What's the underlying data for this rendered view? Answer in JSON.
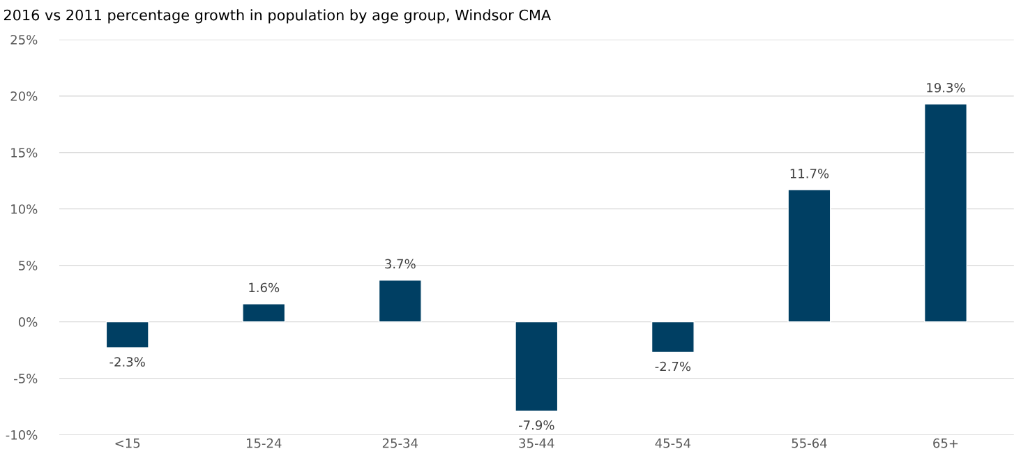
{
  "chart_data": {
    "type": "bar",
    "title": "2016 vs 2011 percentage growth in population by age group, Windsor CMA",
    "categories": [
      "<15",
      "15-24",
      "25-34",
      "35-44",
      "45-54",
      "55-64",
      "65+"
    ],
    "values": [
      -2.3,
      1.6,
      3.7,
      -7.9,
      -2.7,
      11.7,
      19.3
    ],
    "value_labels": [
      "-2.3%",
      "1.6%",
      "3.7%",
      "-7.9%",
      "-2.7%",
      "11.7%",
      "19.3%"
    ],
    "color": "#003f63",
    "ylim": [
      -10,
      25
    ],
    "yticks": [
      {
        "value": -10,
        "label": "-10%"
      },
      {
        "value": -5,
        "label": "-5%"
      },
      {
        "value": 0,
        "label": "0%"
      },
      {
        "value": 5,
        "label": "5%"
      },
      {
        "value": 10,
        "label": "10%"
      },
      {
        "value": 15,
        "label": "15%"
      },
      {
        "value": 20,
        "label": "20%"
      },
      {
        "value": 25,
        "label": "25%"
      }
    ],
    "grid": "y"
  }
}
